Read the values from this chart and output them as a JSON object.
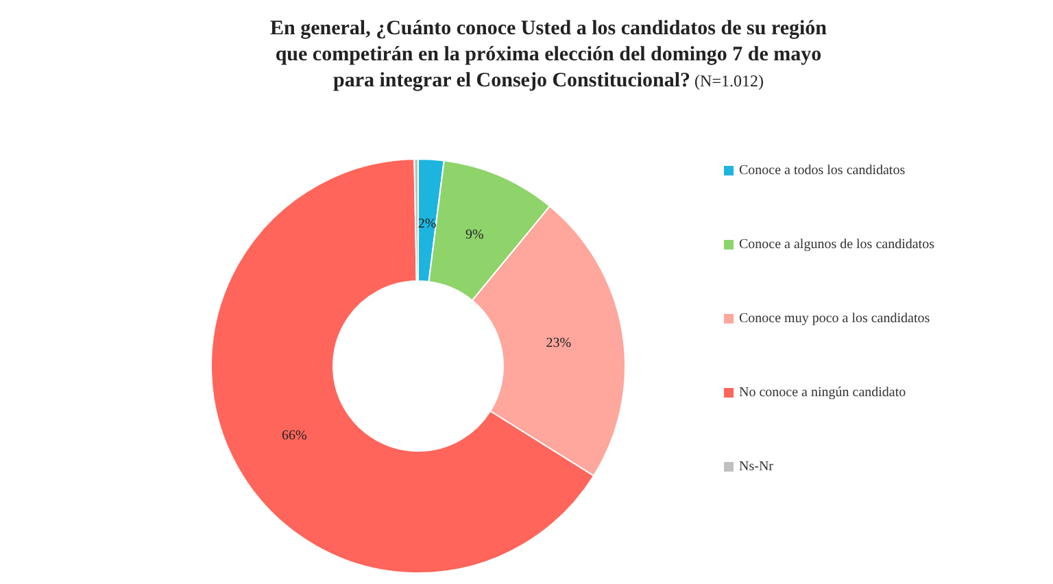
{
  "chart_data": {
    "type": "donut",
    "title": "En general, ¿Cuánto conoce Usted a los candidatos de su región que competirán en la próxima elección del domingo 7 de mayo para integrar el Consejo Constitucional?",
    "subtitle": "(N=1.012)",
    "categories": [
      "Conoce a todos los candidatos",
      "Conoce a algunos de los candidatos",
      "Conoce muy poco a los candidatos",
      "No conoce a ningún candidato",
      "Ns-Nr"
    ],
    "values": [
      2,
      9,
      23,
      66,
      0.3
    ],
    "value_labels": [
      "2%",
      "9%",
      "23%",
      "66%",
      null
    ],
    "colors": [
      "#1db5e0",
      "#8fd36b",
      "#ffa69d",
      "#ff655a",
      "#c0c0c0"
    ],
    "legend": "right"
  }
}
